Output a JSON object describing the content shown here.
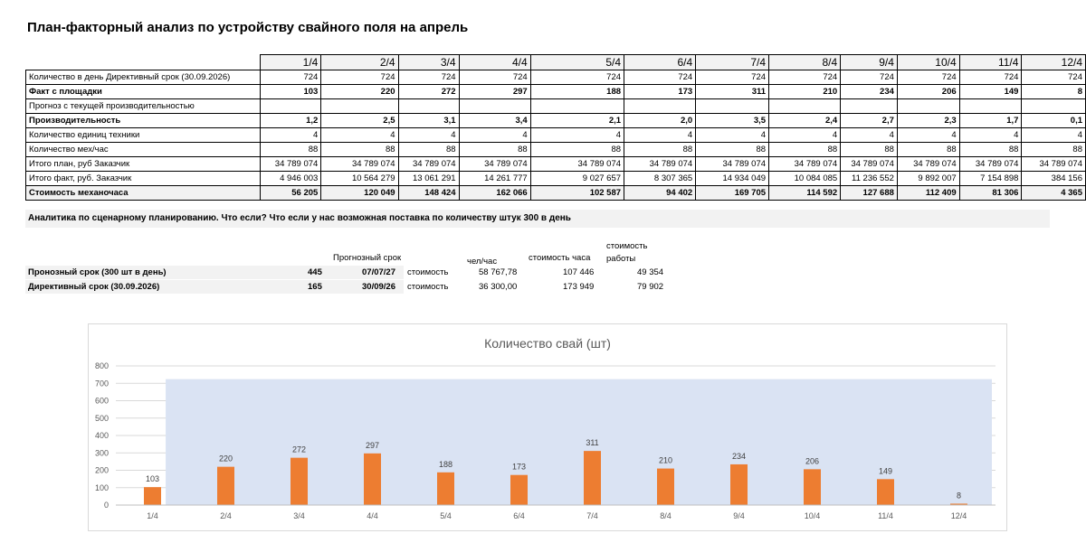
{
  "title": "План-факторный анализ по устройству свайного поля на апрель",
  "table": {
    "columns": [
      "1/4",
      "2/4",
      "3/4",
      "4/4",
      "5/4",
      "6/4",
      "7/4",
      "8/4",
      "9/4",
      "10/4",
      "11/4",
      "12/4"
    ],
    "rows": [
      {
        "label": "Количество в день Директивный срок (30.09.2026)",
        "bold": false,
        "values": [
          "724",
          "724",
          "724",
          "724",
          "724",
          "724",
          "724",
          "724",
          "724",
          "724",
          "724",
          "724"
        ]
      },
      {
        "label": "Факт с площадки",
        "bold": true,
        "values": [
          "103",
          "220",
          "272",
          "297",
          "188",
          "173",
          "311",
          "210",
          "234",
          "206",
          "149",
          "8"
        ]
      },
      {
        "label": "Прогноз с текущей производительностью",
        "bold": false,
        "values": [
          "",
          "",
          "",
          "",
          "",
          "",
          "",
          "",
          "",
          "",
          "",
          ""
        ]
      },
      {
        "label": "Производительность",
        "bold": true,
        "values": [
          "1,2",
          "2,5",
          "3,1",
          "3,4",
          "2,1",
          "2,0",
          "3,5",
          "2,4",
          "2,7",
          "2,3",
          "1,7",
          "0,1"
        ]
      },
      {
        "label": "Количество единиц техники",
        "bold": false,
        "values": [
          "4",
          "4",
          "4",
          "4",
          "4",
          "4",
          "4",
          "4",
          "4",
          "4",
          "4",
          "4"
        ]
      },
      {
        "label": "Количество мех/час",
        "bold": false,
        "values": [
          "88",
          "88",
          "88",
          "88",
          "88",
          "88",
          "88",
          "88",
          "88",
          "88",
          "88",
          "88"
        ]
      },
      {
        "label": "Итого план, руб Заказчик",
        "bold": false,
        "values": [
          "34 789 074",
          "34 789 074",
          "34 789 074",
          "34 789 074",
          "34 789 074",
          "34 789 074",
          "34 789 074",
          "34 789 074",
          "34 789 074",
          "34 789 074",
          "34 789 074",
          "34 789 074"
        ]
      },
      {
        "label": "Итого факт, руб. Заказчик",
        "bold": false,
        "values": [
          "4 946 003",
          "10 564 279",
          "13 061 291",
          "14 261 777",
          "9 027 657",
          "8 307 365",
          "14 934 049",
          "10 084 085",
          "11 236 552",
          "9 892 007",
          "7 154 898",
          "384 156"
        ]
      },
      {
        "label": "Стоимость механочаса",
        "bold": true,
        "shade": true,
        "values": [
          "56 205",
          "120 049",
          "148 424",
          "162 066",
          "102 587",
          "94 402",
          "169 705",
          "114 592",
          "127 688",
          "112 409",
          "81 306",
          "4 365"
        ]
      }
    ]
  },
  "scenario": {
    "heading": "Аналитика по сценарному планированию. Что если? Что если у нас возможная поставка по количеству штук 300 в день",
    "col_forecast": "Прогнозный срок",
    "col_manhour": "чел/час",
    "col_hour_cost": "стоимость часа",
    "col_work_cost_1": "стоимость",
    "col_work_cost_2": "работы",
    "rows": [
      {
        "label": "Пронозный срок (300 шт в день)",
        "days": "445",
        "date": "07/07/27",
        "cost_label": "стоимость",
        "manhour": "58 767,78",
        "hour_cost": "107 446",
        "work_cost": "49 354"
      },
      {
        "label": "Директивный срок (30.09.2026)",
        "days": "165",
        "date": "30/09/26",
        "cost_label": "стоимость",
        "manhour": "36 300,00",
        "hour_cost": "173 949",
        "work_cost": "79 902"
      }
    ]
  },
  "chart_data": {
    "type": "bar",
    "title": "Количество свай (шт)",
    "categories": [
      "1/4",
      "2/4",
      "3/4",
      "4/4",
      "5/4",
      "6/4",
      "7/4",
      "8/4",
      "9/4",
      "10/4",
      "11/4",
      "12/4"
    ],
    "values": [
      103,
      220,
      272,
      297,
      188,
      173,
      311,
      210,
      234,
      206,
      149,
      8
    ],
    "background_area_value": 724,
    "ylim": [
      0,
      800
    ],
    "yticks": [
      "0",
      "100",
      "200",
      "300",
      "400",
      "500",
      "600",
      "700",
      "800"
    ],
    "bar_color": "#ED7D31",
    "area_color": "#DAE3F3",
    "grid": true
  }
}
